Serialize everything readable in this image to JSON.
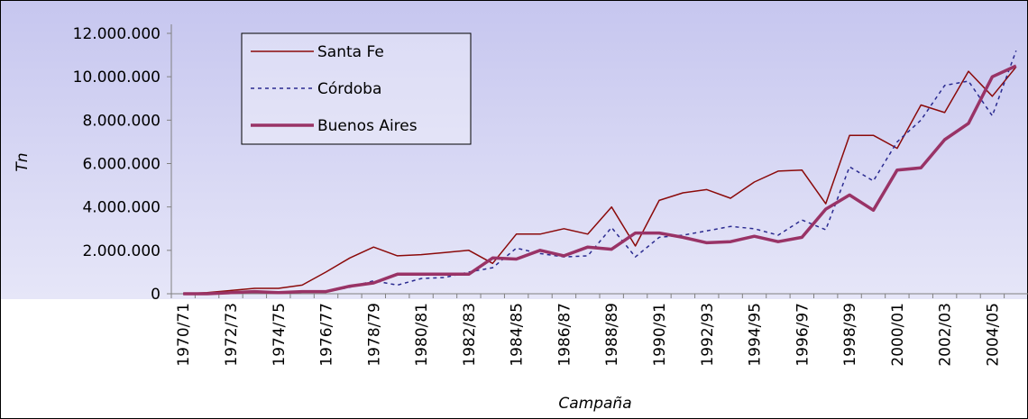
{
  "chart_data": {
    "type": "line",
    "x_label": "Campaña",
    "y_label": "Tn",
    "categories": [
      "1970/71",
      null,
      "1972/73",
      null,
      "1974/75",
      null,
      "1976/77",
      null,
      "1978/79",
      null,
      "1980/81",
      null,
      "1982/83",
      null,
      "1984/85",
      null,
      "1986/87",
      null,
      "1988/89",
      null,
      "1990/91",
      null,
      "1992/93",
      null,
      "1994/95",
      null,
      "1996/97",
      null,
      "1998/99",
      null,
      "2000/01",
      null,
      "2002/03",
      null,
      "2004/05",
      null
    ],
    "series": [
      {
        "name": "Santa Fe",
        "color": "#8b0a0a",
        "width": 1.5,
        "dash": "none",
        "values": [
          0,
          50000,
          150000,
          250000,
          250000,
          400000,
          1000000,
          1650000,
          2150000,
          1750000,
          1800000,
          1900000,
          2000000,
          1400000,
          2750000,
          2750000,
          3000000,
          2750000,
          4000000,
          2200000,
          4300000,
          4650000,
          4800000,
          4400000,
          5150000,
          5650000,
          5700000,
          4150000,
          7300000,
          7300000,
          6700000,
          8700000,
          8350000,
          10250000,
          9100000,
          10450000
        ]
      },
      {
        "name": "Córdoba",
        "color": "#2a2a90",
        "width": 1.5,
        "dash": "4 4",
        "values": [
          0,
          0,
          50000,
          50000,
          50000,
          100000,
          100000,
          300000,
          600000,
          400000,
          700000,
          750000,
          1000000,
          1200000,
          2100000,
          1850000,
          1700000,
          1750000,
          3050000,
          1700000,
          2600000,
          2700000,
          2900000,
          3100000,
          3000000,
          2700000,
          3400000,
          2950000,
          5850000,
          5200000,
          7000000,
          8000000,
          9600000,
          9800000,
          8200000,
          11200000
        ]
      },
      {
        "name": "Buenos Aires",
        "color": "#993366",
        "width": 3.5,
        "dash": "none",
        "values": [
          0,
          0,
          50000,
          100000,
          50000,
          100000,
          100000,
          350000,
          500000,
          900000,
          900000,
          900000,
          900000,
          1650000,
          1600000,
          2000000,
          1750000,
          2150000,
          2050000,
          2800000,
          2800000,
          2600000,
          2350000,
          2400000,
          2650000,
          2400000,
          2600000,
          3900000,
          4550000,
          3850000,
          5700000,
          5800000,
          7100000,
          7850000,
          10000000,
          10500000
        ]
      }
    ],
    "ylim": [
      0,
      12000000
    ],
    "yticks": [
      0,
      {
        "value": 2000000,
        "label": "2.000.000"
      },
      {
        "value": 4000000,
        "label": "4.000.000"
      },
      {
        "value": 6000000,
        "label": "6.000.000"
      },
      {
        "value": 8000000,
        "label": "8.000.000"
      },
      {
        "value": 10000000,
        "label": "10.000.000"
      },
      {
        "value": 12000000,
        "label": "12.000.000"
      }
    ],
    "grid": false,
    "legend": "upper left"
  }
}
